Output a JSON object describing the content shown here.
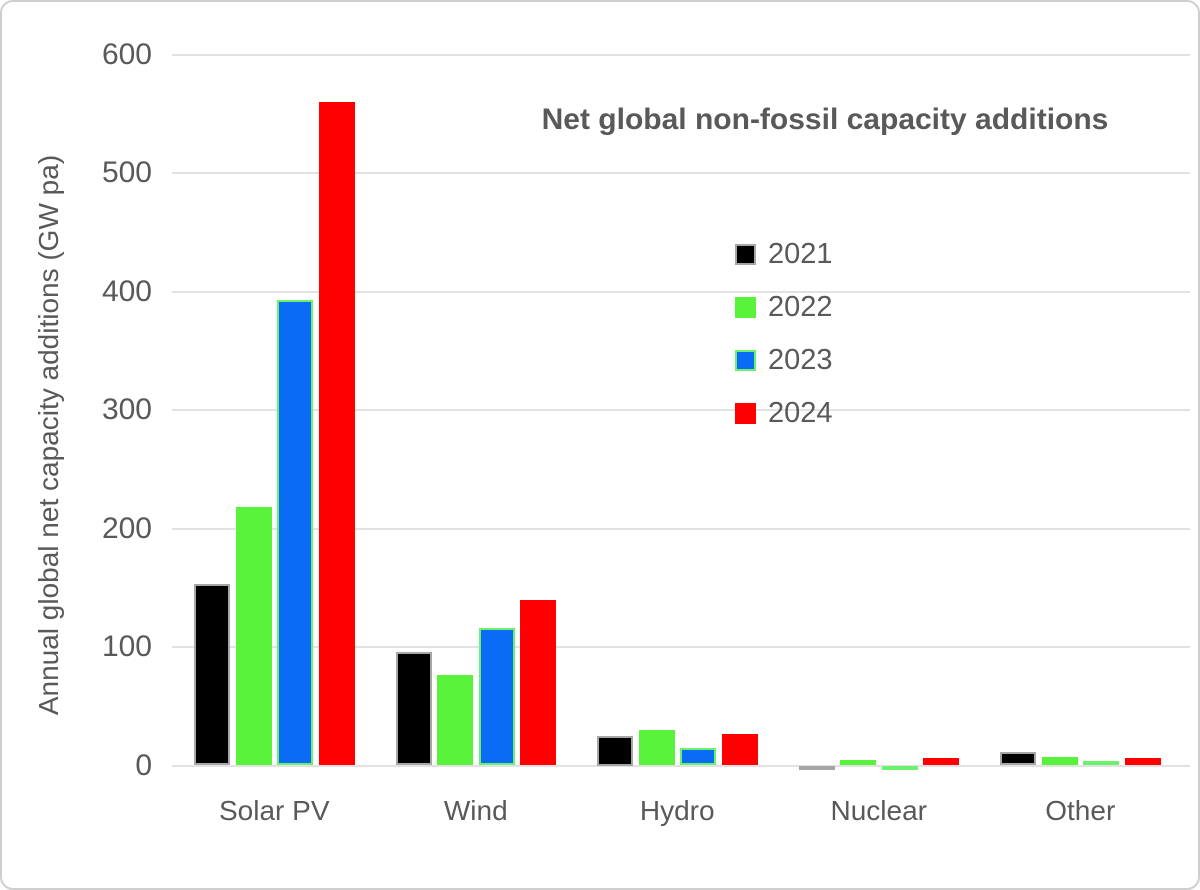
{
  "chart_data": {
    "type": "bar",
    "title": "Net global non-fossil capacity additions",
    "ylabel": "Annual global net capacity additions (GW pa)",
    "categories": [
      "Solar PV",
      "Wind",
      "Hydro",
      "Nuclear",
      "Other"
    ],
    "series": [
      {
        "name": "2021",
        "color": "#000000",
        "border_color": "#a6a6a6",
        "values": [
          153,
          96,
          25,
          -1,
          11
        ]
      },
      {
        "name": "2022",
        "color": "#58f23a",
        "border_color": null,
        "values": [
          218,
          76,
          30,
          5,
          7
        ]
      },
      {
        "name": "2023",
        "color": "#0a6cf5",
        "border_color": "#6bf26b",
        "values": [
          393,
          116,
          15,
          -2,
          4
        ]
      },
      {
        "name": "2024",
        "color": "#ff0000",
        "border_color": null,
        "values": [
          560,
          140,
          27,
          6,
          6
        ]
      }
    ],
    "ylim": [
      0,
      600
    ],
    "ytick_step": 100,
    "grid": true,
    "legend_position": "upper-middle",
    "text_color": "#595959",
    "gridline_color": "#e2e2e2"
  }
}
